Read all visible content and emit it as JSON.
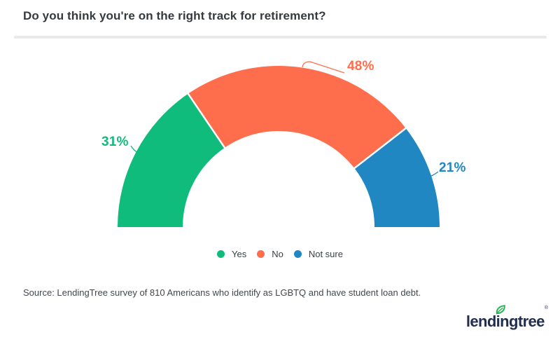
{
  "header": {
    "title": "Do you think you're on the right track for retirement?"
  },
  "chart_data": {
    "type": "pie",
    "variant": "half-donut",
    "title": "Do you think you're on the right track for retirement?",
    "unit": "%",
    "total_degrees": 180,
    "legend_position": "bottom",
    "segments": [
      {
        "label": "Yes",
        "value": 31,
        "display": "31%",
        "color": "#10bc7c"
      },
      {
        "label": "No",
        "value": 48,
        "display": "48%",
        "color": "#ff6e4c"
      },
      {
        "label": "Not sure",
        "value": 21,
        "display": "21%",
        "color": "#2187c3"
      }
    ]
  },
  "footer": {
    "source": "Source: LendingTree survey of 810 Americans who identify as LGBTQ and have student loan debt.",
    "logo": {
      "text": "lendingtree",
      "registered": "®",
      "text_color": "#222e4f",
      "leaf_color": "#2bb257"
    }
  }
}
